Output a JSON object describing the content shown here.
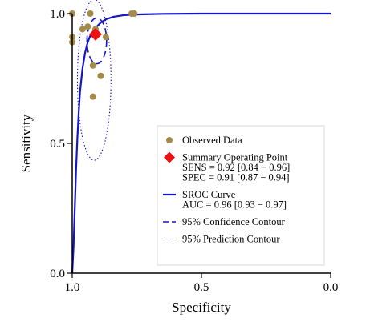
{
  "chart_data": {
    "type": "scatter",
    "xlabel": "Specificity",
    "ylabel": "Sensitivity",
    "x_reversed": true,
    "xlim": [
      1.0,
      0.0
    ],
    "ylim": [
      0.0,
      1.0
    ],
    "x_ticks": [
      {
        "value": 1.0,
        "label": "1.0"
      },
      {
        "value": 0.5,
        "label": "0.5"
      },
      {
        "value": 0.0,
        "label": "0.0"
      }
    ],
    "y_ticks": [
      {
        "value": 0.0,
        "label": "0.0"
      },
      {
        "value": 0.5,
        "label": "0.5"
      },
      {
        "value": 1.0,
        "label": "1.0"
      }
    ],
    "grid": false,
    "legend_position": "bottom-right",
    "colors": {
      "observed": "#a48b4a",
      "summary": "#ee1111",
      "curve": "#1515c8",
      "contour": "#1515c8",
      "axis": "#000000"
    },
    "observed_points": [
      {
        "spec": 1.0,
        "sens": 1.0
      },
      {
        "spec": 1.0,
        "sens": 0.91
      },
      {
        "spec": 1.0,
        "sens": 0.89
      },
      {
        "spec": 0.93,
        "sens": 1.0
      },
      {
        "spec": 0.96,
        "sens": 0.94
      },
      {
        "spec": 0.94,
        "sens": 0.95
      },
      {
        "spec": 0.91,
        "sens": 0.94
      },
      {
        "spec": 0.87,
        "sens": 0.91
      },
      {
        "spec": 0.92,
        "sens": 0.8
      },
      {
        "spec": 0.89,
        "sens": 0.76
      },
      {
        "spec": 0.92,
        "sens": 0.68
      },
      {
        "spec": 0.77,
        "sens": 1.0
      },
      {
        "spec": 0.76,
        "sens": 1.0
      }
    ],
    "summary_point": {
      "spec": 0.91,
      "sens": 0.92
    },
    "sroc_curve": [
      {
        "spec": 1.0,
        "sens": 0.0
      },
      {
        "spec": 0.995,
        "sens": 0.1
      },
      {
        "spec": 0.99,
        "sens": 0.25
      },
      {
        "spec": 0.985,
        "sens": 0.4
      },
      {
        "spec": 0.98,
        "sens": 0.52
      },
      {
        "spec": 0.975,
        "sens": 0.62
      },
      {
        "spec": 0.97,
        "sens": 0.7
      },
      {
        "spec": 0.96,
        "sens": 0.79
      },
      {
        "spec": 0.95,
        "sens": 0.85
      },
      {
        "spec": 0.94,
        "sens": 0.89
      },
      {
        "spec": 0.93,
        "sens": 0.915
      },
      {
        "spec": 0.91,
        "sens": 0.945
      },
      {
        "spec": 0.89,
        "sens": 0.965
      },
      {
        "spec": 0.87,
        "sens": 0.978
      },
      {
        "spec": 0.84,
        "sens": 0.988
      },
      {
        "spec": 0.8,
        "sens": 0.994
      },
      {
        "spec": 0.74,
        "sens": 0.997
      },
      {
        "spec": 0.65,
        "sens": 0.999
      },
      {
        "spec": 0.5,
        "sens": 1.0
      },
      {
        "spec": 0.0,
        "sens": 1.0
      }
    ],
    "confidence_contour": {
      "center_spec": 0.905,
      "center_sens": 0.895,
      "half_width_spec": 0.038,
      "half_height_sens": 0.088
    },
    "prediction_contour": {
      "center_spec": 0.915,
      "center_sens": 0.745,
      "half_width_spec": 0.065,
      "half_height_sens": 0.31
    },
    "legend": [
      {
        "key": "observed",
        "symbol": "dot",
        "lines": [
          "Observed Data"
        ]
      },
      {
        "key": "summary",
        "symbol": "diamond",
        "lines": [
          "Summary Operating Point",
          "SENS = 0.92 [0.84 − 0.96]",
          "SPEC = 0.91 [0.87 − 0.94]"
        ]
      },
      {
        "key": "curve",
        "symbol": "solid",
        "lines": [
          "SROC Curve",
          "AUC = 0.96 [0.93 − 0.97]"
        ]
      },
      {
        "key": "confidence",
        "symbol": "dashed",
        "lines": [
          "95% Confidence Contour"
        ]
      },
      {
        "key": "prediction",
        "symbol": "dotted",
        "lines": [
          "95% Prediction Contour"
        ]
      }
    ]
  }
}
